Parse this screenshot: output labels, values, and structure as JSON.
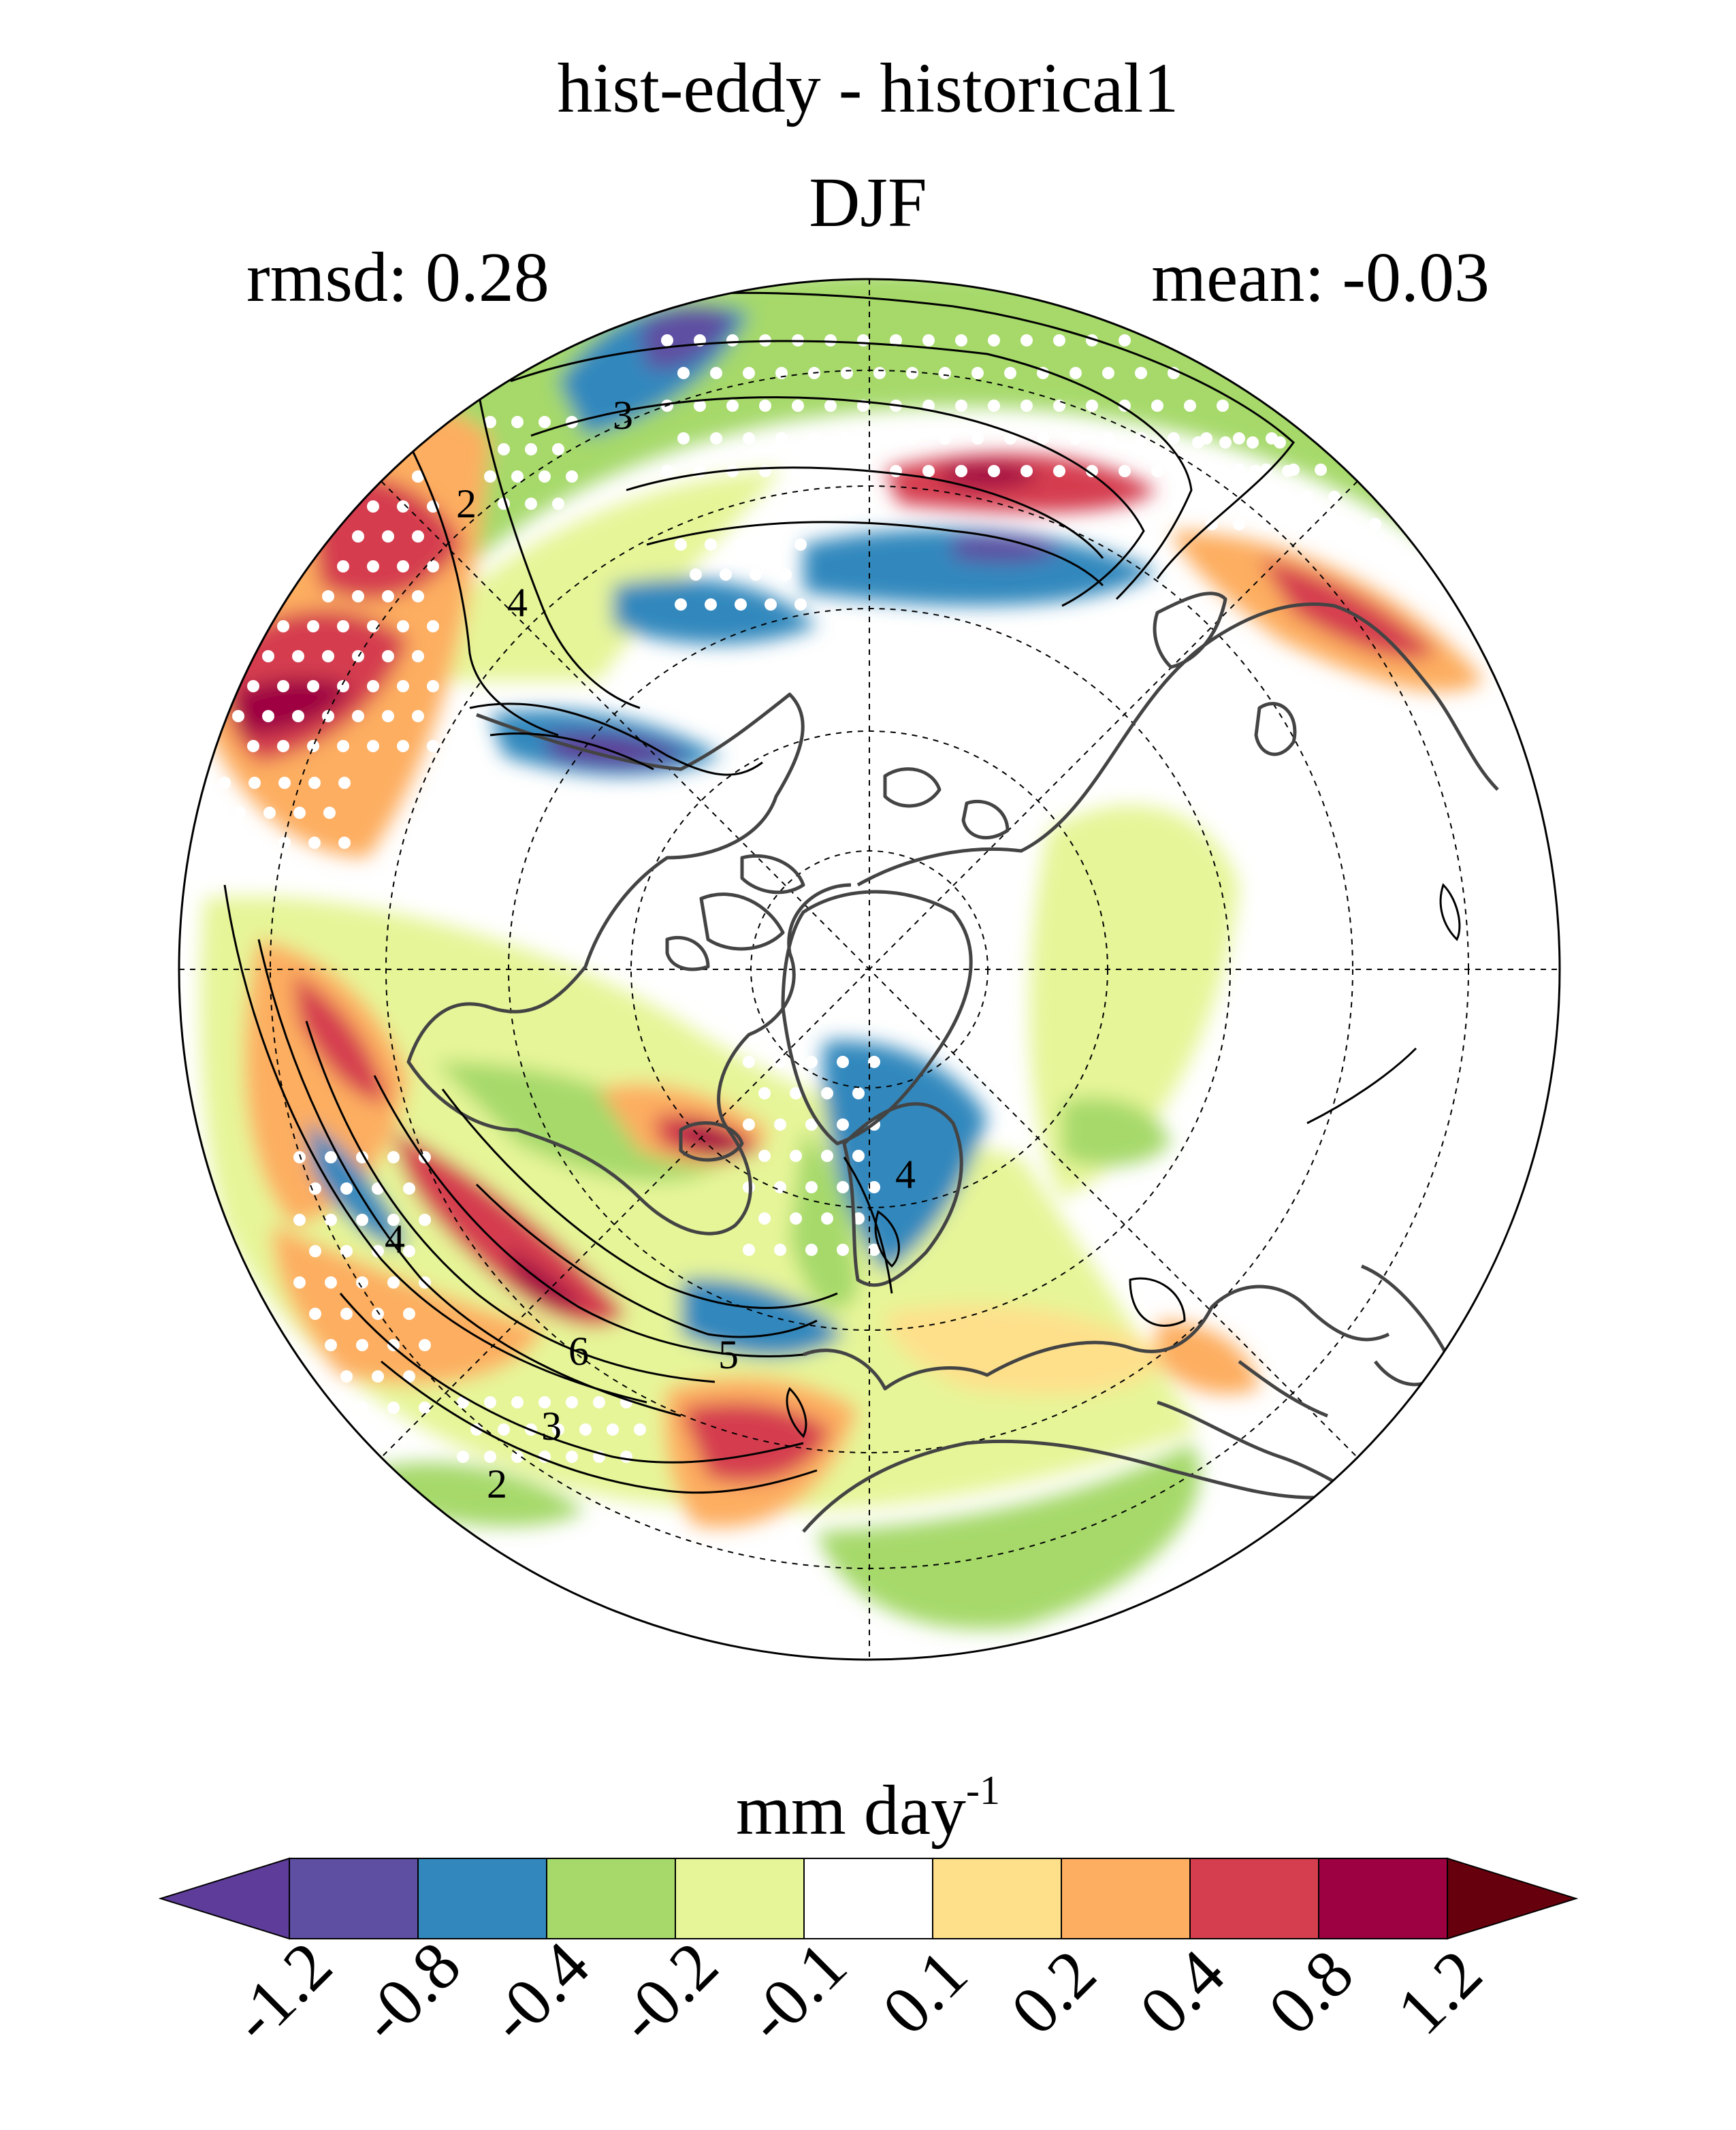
{
  "title": "hist-eddy - historical1",
  "season": "DJF",
  "stats": {
    "rmsd": "rmsd: 0.28",
    "mean": "mean: -0.03"
  },
  "units": {
    "base": "mm day",
    "exponent": "-1"
  },
  "colorbar": {
    "colors": [
      "#5e3c99",
      "#5e4fa2",
      "#3288bd",
      "#a6d96a",
      "#e6f598",
      "#ffffff",
      "#fee08b",
      "#fdae61",
      "#d53e4f",
      "#9e0142",
      "#67000d"
    ],
    "tick_labels": [
      "-1.2",
      "-0.8",
      "-0.4",
      "-0.2",
      "-0.1",
      "0.1",
      "0.2",
      "0.4",
      "0.8",
      "1.2"
    ]
  },
  "contour_labels": [
    "3",
    "2",
    "4",
    "4",
    "6",
    "5",
    "3",
    "2",
    "4"
  ],
  "projection": "north-polar-stereographic"
}
